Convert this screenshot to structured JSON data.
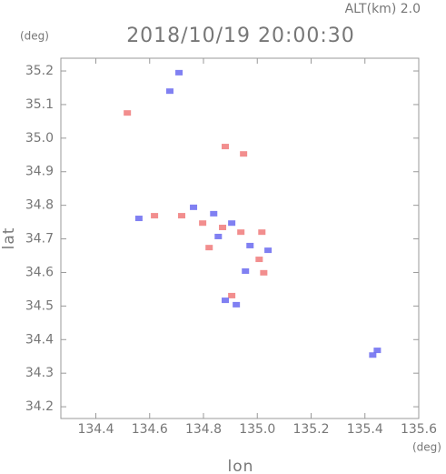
{
  "chart_data": {
    "type": "scatter",
    "title": "2018/10/19 20:00:30",
    "subtitle": "ALT(km) 2.0",
    "y_unit": "(deg)",
    "x_unit": "(deg)",
    "xlabel": "lon",
    "ylabel": "lat",
    "xlim": [
      134.27,
      135.6
    ],
    "ylim": [
      34.165,
      35.238
    ],
    "xticks": [
      134.4,
      134.6,
      134.8,
      {
        "value": 135.0,
        "label": "135.0"
      },
      135.2,
      135.4,
      135.6
    ],
    "yticks": [
      34.2,
      34.3,
      34.4,
      34.5,
      34.6,
      34.7,
      34.8,
      34.9,
      {
        "value": 35.0,
        "label": "35.0"
      },
      35.1,
      35.2
    ],
    "series": [
      {
        "color": "#f07a7a",
        "x": [
          134.517,
          134.881,
          134.949,
          134.618,
          134.719,
          134.797,
          134.871,
          134.939,
          135.017,
          135.007,
          135.024,
          134.905,
          134.821
        ],
        "values": [
          35.075,
          34.975,
          34.953,
          34.769,
          34.769,
          34.747,
          34.734,
          34.72,
          34.72,
          34.639,
          34.599,
          34.531,
          34.674
        ]
      },
      {
        "color": "#6a6af0",
        "x": [
          134.709,
          134.675,
          134.56,
          134.763,
          134.838,
          134.905,
          134.855,
          134.973,
          135.04,
          134.956,
          134.881,
          134.922,
          135.429,
          135.446
        ],
        "values": [
          35.195,
          35.14,
          34.761,
          34.794,
          34.775,
          34.747,
          34.707,
          34.68,
          34.666,
          34.604,
          34.517,
          34.504,
          34.354,
          34.368
        ]
      }
    ]
  }
}
